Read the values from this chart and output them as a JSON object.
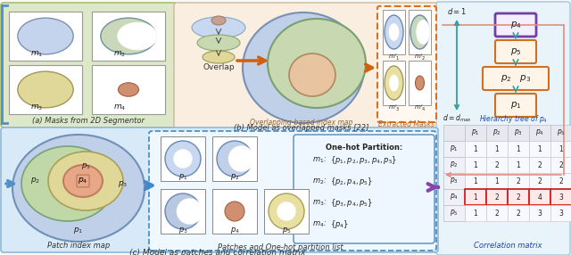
{
  "fig_width": 6.4,
  "fig_height": 2.86,
  "matrix_data": [
    [
      1,
      1,
      1,
      1,
      1
    ],
    [
      1,
      2,
      1,
      2,
      2
    ],
    [
      1,
      1,
      2,
      2,
      2
    ],
    [
      1,
      2,
      2,
      4,
      3
    ],
    [
      1,
      2,
      2,
      3,
      3
    ]
  ],
  "row_labels": [
    "p_1",
    "p_2",
    "p_3",
    "p_4",
    "p_5"
  ],
  "col_labels": [
    "p_1",
    "p_2",
    "p_3",
    "p_4",
    "p_5"
  ],
  "highlight_row": 3,
  "panel_a_fc": "#dce8c8",
  "panel_a_ec": "#a8c070",
  "panel_b_fc": "#faeee0",
  "panel_b_ec": "#d0b898",
  "panel_c_fc": "#d8eaf8",
  "panel_c_ec": "#90b8d8",
  "panel_r_fc": "#e8f4fa",
  "panel_r_ec": "#a0c8dc",
  "blue_arrow": "#3880c8",
  "teal_arrow": "#30a0a0",
  "orange_arrow": "#d06010",
  "purple_arrow": "#8844aa",
  "salmon_line": "#e09080",
  "purple_box_ec": "#7040a8",
  "orange_box_ec": "#d07020",
  "cell_highlight_fc": "#ffe8e8",
  "cell_highlight_ec": "#cc2222",
  "title_color": "#2244aa",
  "label_color": "#333333"
}
